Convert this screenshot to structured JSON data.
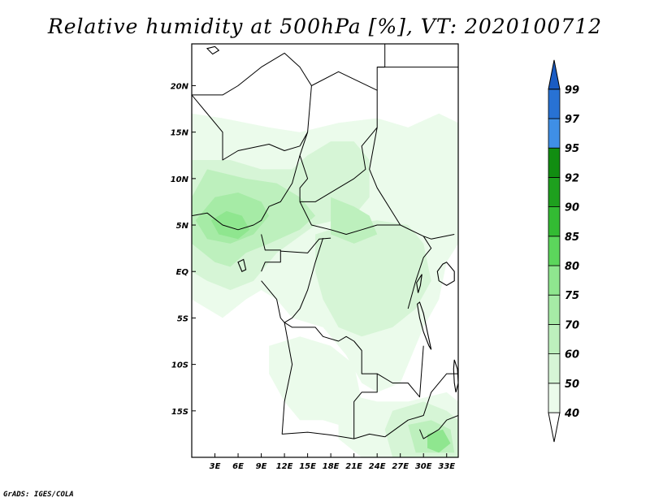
{
  "title": "Relative humidity at 500hPa [%], VT: 2020100712",
  "credit": "GrADS: IGES/COLA",
  "map": {
    "lon_range": [
      0,
      34.5
    ],
    "lat_range": [
      -20,
      24.5
    ],
    "lon_ticks": [
      {
        "value": 3,
        "label": "3E"
      },
      {
        "value": 6,
        "label": "6E"
      },
      {
        "value": 9,
        "label": "9E"
      },
      {
        "value": 12,
        "label": "12E"
      },
      {
        "value": 15,
        "label": "15E"
      },
      {
        "value": 18,
        "label": "18E"
      },
      {
        "value": 21,
        "label": "21E"
      },
      {
        "value": 24,
        "label": "24E"
      },
      {
        "value": 27,
        "label": "27E"
      },
      {
        "value": 30,
        "label": "30E"
      },
      {
        "value": 33,
        "label": "33E"
      }
    ],
    "lat_ticks": [
      {
        "value": 20,
        "label": "20N"
      },
      {
        "value": 15,
        "label": "15N"
      },
      {
        "value": 10,
        "label": "10N"
      },
      {
        "value": 5,
        "label": "5N"
      },
      {
        "value": 0,
        "label": "EQ"
      },
      {
        "value": -5,
        "label": "5S"
      },
      {
        "value": -10,
        "label": "10S"
      },
      {
        "value": -15,
        "label": "15S"
      }
    ],
    "humidity_regions": [
      {
        "level": 50,
        "points": [
          [
            0,
            17
          ],
          [
            4,
            16.5
          ],
          [
            10,
            15.5
          ],
          [
            14,
            15
          ],
          [
            19,
            16
          ],
          [
            24,
            16.5
          ],
          [
            28,
            15.5
          ],
          [
            32,
            17
          ],
          [
            34.5,
            16
          ],
          [
            34.5,
            3
          ],
          [
            33,
            1
          ],
          [
            32,
            -3
          ],
          [
            30,
            -6
          ],
          [
            28,
            -10
          ],
          [
            27,
            -12
          ],
          [
            24,
            -13
          ],
          [
            22,
            -12
          ],
          [
            20,
            -9
          ],
          [
            17,
            -6
          ],
          [
            13,
            -5
          ],
          [
            11,
            -3
          ],
          [
            9,
            -2
          ],
          [
            7,
            -3
          ],
          [
            4,
            -5
          ],
          [
            2,
            -4
          ],
          [
            0,
            -3
          ]
        ]
      },
      {
        "level": 50,
        "points": [
          [
            10,
            -8
          ],
          [
            14,
            -7
          ],
          [
            18,
            -8
          ],
          [
            21,
            -10
          ],
          [
            22,
            -14
          ],
          [
            21,
            -17
          ],
          [
            17,
            -16
          ],
          [
            14,
            -16
          ],
          [
            12,
            -14
          ],
          [
            10,
            -11
          ]
        ]
      },
      {
        "level": 50,
        "points": [
          [
            19,
            -13
          ],
          [
            24,
            -14
          ],
          [
            28,
            -14
          ],
          [
            33,
            -13
          ],
          [
            34.5,
            -14
          ],
          [
            34.5,
            -20
          ],
          [
            22,
            -20
          ],
          [
            19,
            -18
          ]
        ]
      },
      {
        "level": 60,
        "points": [
          [
            0,
            12
          ],
          [
            5,
            12
          ],
          [
            9,
            11
          ],
          [
            13,
            11
          ],
          [
            15,
            12.5
          ],
          [
            18,
            14
          ],
          [
            21,
            14
          ],
          [
            23,
            12
          ],
          [
            23,
            8
          ],
          [
            21,
            6
          ],
          [
            16,
            5
          ],
          [
            11,
            2
          ],
          [
            8,
            -1
          ],
          [
            5,
            -2
          ],
          [
            2,
            -1
          ],
          [
            0,
            0
          ]
        ]
      },
      {
        "level": 60,
        "points": [
          [
            16,
            4
          ],
          [
            20,
            5
          ],
          [
            24,
            5.5
          ],
          [
            28,
            5
          ],
          [
            30,
            3
          ],
          [
            31,
            -1
          ],
          [
            29,
            -4
          ],
          [
            26,
            -6
          ],
          [
            22,
            -7
          ],
          [
            19,
            -6
          ],
          [
            17,
            -3
          ],
          [
            16,
            0
          ]
        ]
      },
      {
        "level": 60,
        "points": [
          [
            26,
            -15
          ],
          [
            30,
            -14
          ],
          [
            33,
            -15
          ],
          [
            34.5,
            -16
          ],
          [
            34.5,
            -20
          ],
          [
            26,
            -20
          ],
          [
            25,
            -17
          ]
        ]
      },
      {
        "level": 70,
        "points": [
          [
            2,
            11
          ],
          [
            7,
            10
          ],
          [
            11,
            9.5
          ],
          [
            14,
            8
          ],
          [
            16,
            6
          ],
          [
            14,
            4.5
          ],
          [
            10,
            3
          ],
          [
            7,
            2
          ],
          [
            5,
            0.5
          ],
          [
            3,
            1
          ],
          [
            0,
            3
          ],
          [
            0,
            8
          ]
        ]
      },
      {
        "level": 70,
        "points": [
          [
            18,
            8
          ],
          [
            21,
            7
          ],
          [
            23,
            6
          ],
          [
            24,
            4
          ],
          [
            21,
            3
          ],
          [
            18,
            4
          ]
        ]
      },
      {
        "level": 70,
        "points": [
          [
            28,
            -16.5
          ],
          [
            31,
            -16
          ],
          [
            33.5,
            -17
          ],
          [
            34,
            -19.5
          ],
          [
            29,
            -19.5
          ]
        ]
      },
      {
        "level": 75,
        "points": [
          [
            3,
            8
          ],
          [
            6,
            8.5
          ],
          [
            9,
            7.5
          ],
          [
            10,
            6
          ],
          [
            8,
            4
          ],
          [
            5,
            3
          ],
          [
            2,
            3.5
          ],
          [
            0.5,
            5.5
          ]
        ]
      },
      {
        "level": 80,
        "points": [
          [
            4.5,
            6.5
          ],
          [
            6.5,
            6
          ],
          [
            7.5,
            4.5
          ],
          [
            6,
            3.5
          ],
          [
            3.5,
            4
          ],
          [
            2.5,
            5.5
          ]
        ]
      },
      {
        "level": 80,
        "points": [
          [
            30.5,
            -17.5
          ],
          [
            32.5,
            -17
          ],
          [
            33.5,
            -18.5
          ],
          [
            32,
            -19.5
          ],
          [
            30.5,
            -19
          ]
        ]
      }
    ],
    "borders": [
      [
        [
          0,
          19
        ],
        [
          4,
          15
        ],
        [
          4,
          12
        ],
        [
          6,
          13
        ],
        [
          10,
          13.7
        ],
        [
          12,
          13
        ],
        [
          14,
          13.5
        ],
        [
          15,
          15
        ],
        [
          15.5,
          20
        ],
        [
          14,
          22
        ],
        [
          12,
          23.5
        ],
        [
          9,
          22
        ],
        [
          6,
          20
        ],
        [
          4,
          19
        ],
        [
          0,
          19
        ]
      ],
      [
        [
          15.5,
          20
        ],
        [
          19,
          21.5
        ],
        [
          24,
          19.5
        ],
        [
          24,
          15.5
        ],
        [
          22,
          13.5
        ],
        [
          22.5,
          11
        ],
        [
          21,
          10
        ],
        [
          19,
          9
        ],
        [
          16,
          7.5
        ],
        [
          14,
          7.5
        ],
        [
          14,
          9
        ],
        [
          15,
          10
        ],
        [
          14,
          12.5
        ],
        [
          15,
          15
        ]
      ],
      [
        [
          24,
          19.5
        ],
        [
          24,
          22
        ],
        [
          25,
          22
        ],
        [
          25,
          24.5
        ]
      ],
      [
        [
          24,
          22
        ],
        [
          34.5,
          22
        ]
      ],
      [
        [
          24,
          15.5
        ],
        [
          23,
          11
        ],
        [
          24,
          9
        ],
        [
          27,
          5
        ],
        [
          30,
          3.8
        ],
        [
          31,
          3.5
        ],
        [
          34,
          4
        ]
      ],
      [
        [
          14,
          7.5
        ],
        [
          15.5,
          5
        ],
        [
          18,
          4.5
        ],
        [
          20,
          4
        ],
        [
          22,
          4.5
        ],
        [
          24,
          5
        ],
        [
          27,
          5
        ]
      ],
      [
        [
          11.5,
          2.2
        ],
        [
          15,
          2
        ],
        [
          16,
          3
        ],
        [
          16.5,
          3.5
        ],
        [
          18,
          3.6
        ]
      ],
      [
        [
          0,
          6
        ],
        [
          2,
          6.3
        ],
        [
          4,
          5
        ],
        [
          6,
          4.5
        ],
        [
          8,
          5
        ],
        [
          9,
          5.5
        ],
        [
          10,
          7
        ],
        [
          11.5,
          7.5
        ],
        [
          13,
          9.5
        ],
        [
          14,
          12.5
        ]
      ],
      [
        [
          9,
          4
        ],
        [
          9.5,
          2.3
        ],
        [
          11.5,
          2.3
        ],
        [
          11.5,
          1
        ],
        [
          9.5,
          1
        ],
        [
          9,
          0
        ]
      ],
      [
        [
          9,
          -1
        ],
        [
          11,
          -3
        ],
        [
          11.5,
          -5
        ],
        [
          12,
          -5.5
        ],
        [
          13,
          -5
        ],
        [
          14,
          -4
        ],
        [
          15,
          -2
        ],
        [
          16,
          1
        ],
        [
          17,
          3.6
        ]
      ],
      [
        [
          12,
          -5.5
        ],
        [
          13,
          -6
        ],
        [
          16,
          -6
        ],
        [
          17,
          -7
        ],
        [
          19,
          -7.5
        ],
        [
          20,
          -7
        ],
        [
          21,
          -7.5
        ],
        [
          22,
          -8.5
        ],
        [
          22,
          -11
        ],
        [
          24,
          -11
        ],
        [
          26,
          -12
        ],
        [
          28,
          -12
        ],
        [
          29.5,
          -13.5
        ],
        [
          30,
          -8
        ]
      ],
      [
        [
          28,
          -4
        ],
        [
          29,
          -1
        ],
        [
          30,
          1.5
        ],
        [
          31,
          2.5
        ],
        [
          30,
          3.8
        ]
      ],
      [
        [
          12,
          -5.5
        ],
        [
          13,
          -10
        ],
        [
          12,
          -14
        ],
        [
          11.7,
          -17.5
        ],
        [
          15,
          -17.3
        ],
        [
          18,
          -17.6
        ],
        [
          21,
          -18
        ],
        [
          23,
          -17.5
        ],
        [
          25,
          -17.8
        ]
      ],
      [
        [
          21,
          -18
        ],
        [
          21,
          -14
        ],
        [
          22,
          -13
        ],
        [
          24,
          -13
        ],
        [
          24,
          -11
        ]
      ],
      [
        [
          25,
          -17.8
        ],
        [
          28,
          -16
        ],
        [
          30,
          -15.5
        ],
        [
          31,
          -13
        ],
        [
          33,
          -11
        ],
        [
          34.5,
          -11
        ]
      ],
      [
        [
          20,
          -20
        ],
        [
          20,
          -22
        ],
        [
          22,
          -23
        ]
      ],
      [
        [
          29.5,
          -17
        ],
        [
          30,
          -18
        ],
        [
          32,
          -17
        ],
        [
          33,
          -16
        ],
        [
          34.5,
          -15.5
        ]
      ]
    ],
    "lakes": [
      [
        [
          29.2,
          -3.5
        ],
        [
          29.5,
          -5
        ],
        [
          30,
          -6.5
        ],
        [
          30.7,
          -8
        ],
        [
          31,
          -8.4
        ],
        [
          30.5,
          -6.5
        ],
        [
          30,
          -4.5
        ],
        [
          29.5,
          -3.3
        ]
      ],
      [
        [
          33,
          1
        ],
        [
          33.5,
          0.5
        ],
        [
          34,
          0
        ],
        [
          34,
          -1
        ],
        [
          33,
          -1.5
        ],
        [
          32,
          -1
        ],
        [
          31.8,
          0
        ],
        [
          32.5,
          0.8
        ]
      ],
      [
        [
          34,
          -9.5
        ],
        [
          34.4,
          -10.5
        ],
        [
          34.5,
          -12
        ],
        [
          34.2,
          -13
        ],
        [
          34,
          -12
        ],
        [
          33.9,
          -10.5
        ]
      ],
      [
        [
          29.8,
          -0.3
        ],
        [
          29.6,
          -1.5
        ],
        [
          29.3,
          -2.3
        ],
        [
          29.1,
          -1.2
        ]
      ],
      [
        [
          6,
          1
        ],
        [
          6.5,
          0
        ],
        [
          7,
          0.2
        ],
        [
          6.7,
          1.3
        ]
      ],
      [
        [
          2,
          24
        ],
        [
          3,
          24.2
        ],
        [
          3.5,
          23.8
        ],
        [
          2.7,
          23.4
        ]
      ]
    ]
  },
  "colorbar": {
    "levels": [
      {
        "label": "40",
        "color": "#ffffff"
      },
      {
        "label": "50",
        "color": "#ebfbeb"
      },
      {
        "label": "60",
        "color": "#d6f5d6"
      },
      {
        "label": "70",
        "color": "#bdf0bd"
      },
      {
        "label": "75",
        "color": "#a6eba6"
      },
      {
        "label": "80",
        "color": "#8fe68f"
      },
      {
        "label": "85",
        "color": "#5cd65c"
      },
      {
        "label": "90",
        "color": "#33bb33"
      },
      {
        "label": "92",
        "color": "#1ea01e"
      },
      {
        "label": "95",
        "color": "#118d11"
      },
      {
        "label": "97",
        "color": "#3f8fe6"
      },
      {
        "label": "99",
        "color": "#2872d4"
      }
    ],
    "top_color": "#1a5cc4",
    "bottom_color": "#ffffff"
  },
  "level_colors": {
    "50": "#ebfbeb",
    "60": "#d6f5d6",
    "70": "#bdf0bd",
    "75": "#a6eba6",
    "80": "#8fe68f"
  }
}
